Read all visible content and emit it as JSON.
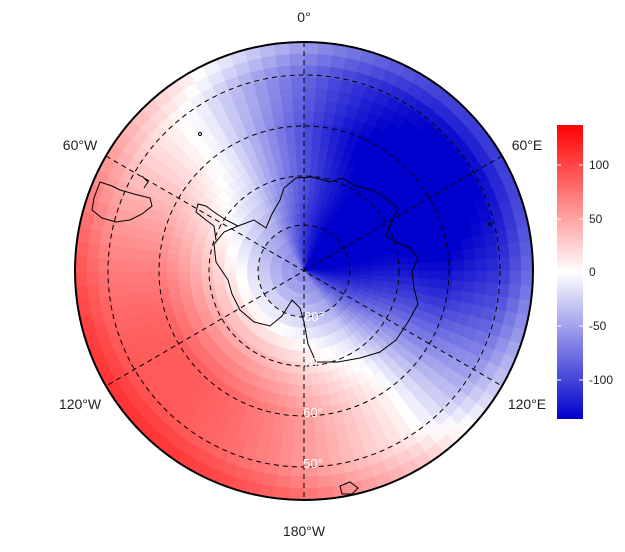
{
  "map": {
    "projection": "south-polar stereographic",
    "longitude_labels": {
      "top": "0°",
      "bottom": "180°W",
      "upper_left": "60°W",
      "upper_right": "60°E",
      "lower_left": "120°W",
      "lower_right": "120°E"
    },
    "latitude_labels": [
      "80°",
      "70°",
      "60°",
      "50°"
    ],
    "colorbar": {
      "ticks": [
        "100",
        "50",
        "0",
        "-50",
        "-100"
      ],
      "range": [
        -130,
        130
      ],
      "colors": {
        "high": "#ff0000",
        "mid": "#ffffff",
        "low": "#0000cc"
      }
    },
    "field_pattern": {
      "description_values": "positive anomaly (red) over 60W–180W sector and 30W–0 outer ring; negative anomaly (blue) over East Antarctica and 0–120E"
    }
  }
}
